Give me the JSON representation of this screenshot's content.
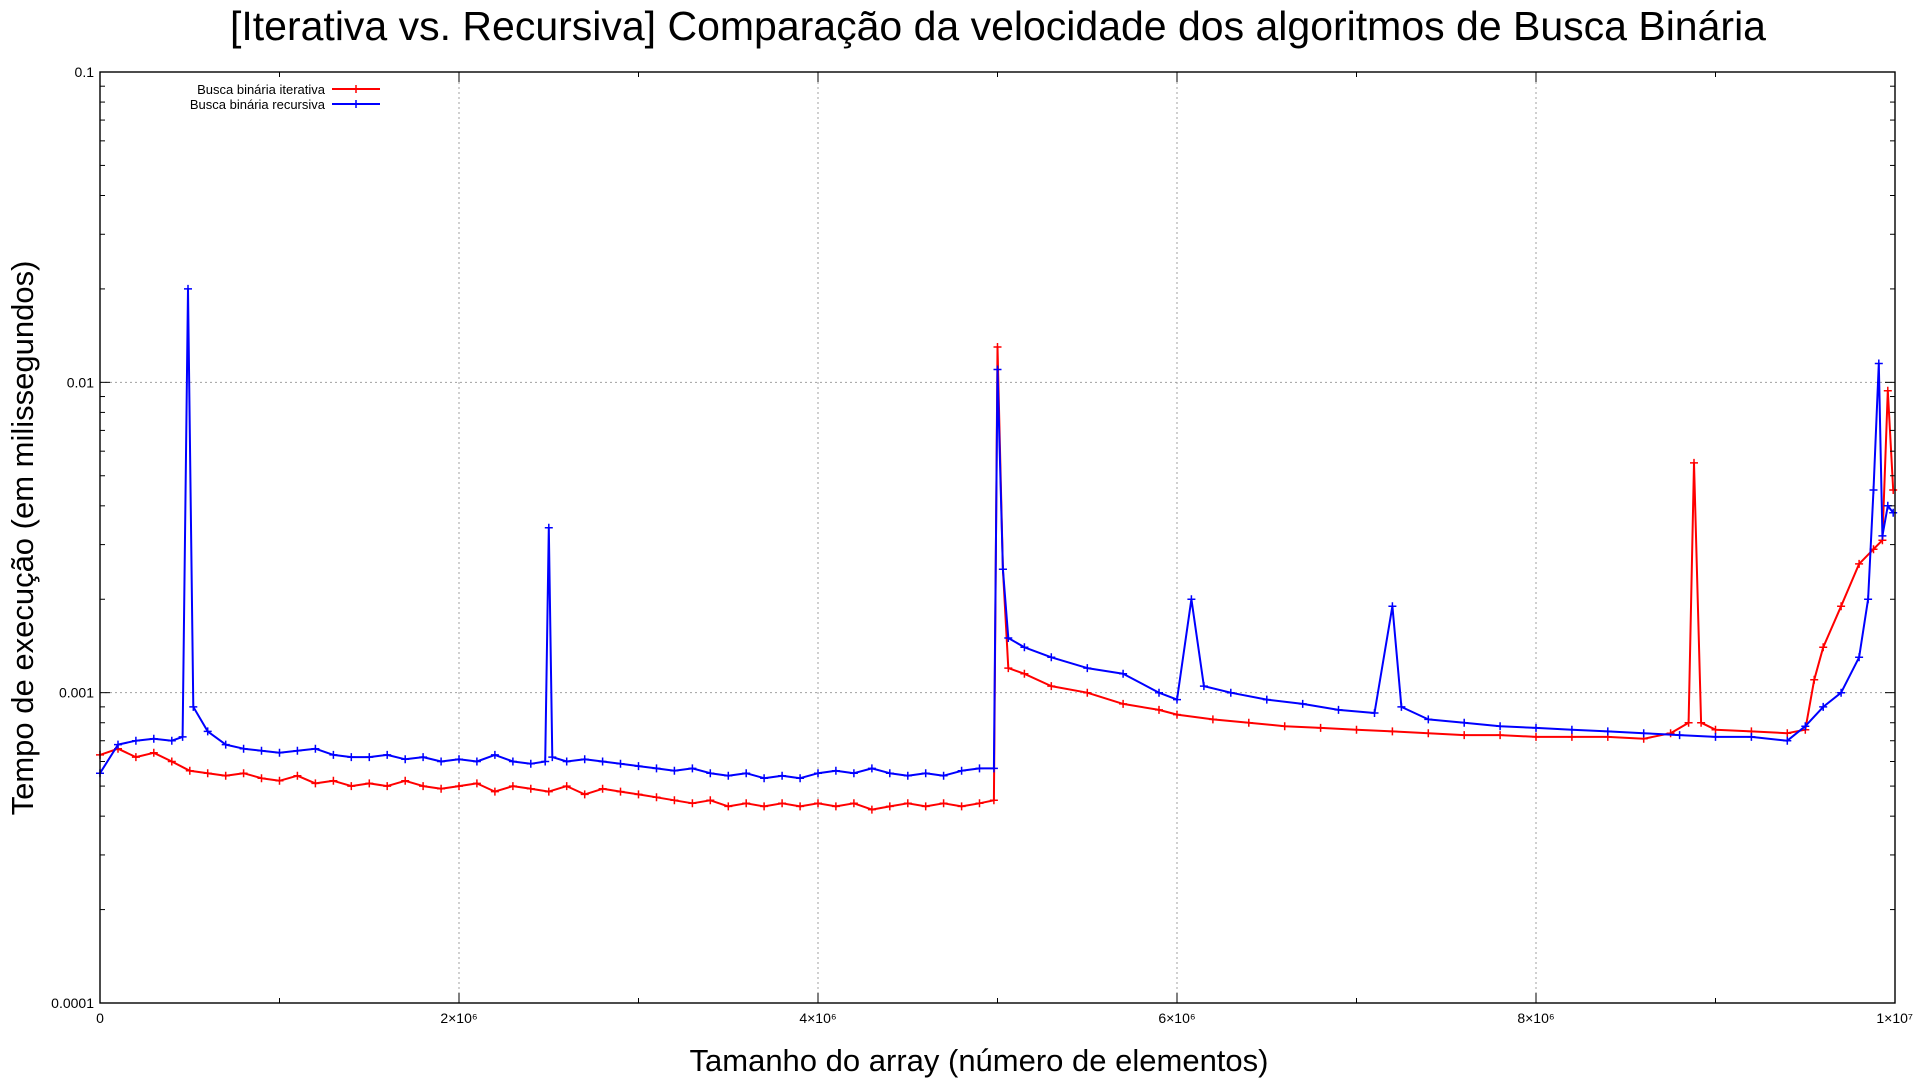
{
  "chart_data": {
    "type": "line",
    "title": "[Iterativa vs. Recursiva] Comparação da velocidade dos algoritmos de Busca Binária",
    "xlabel": "Tamanho do array (número de elementos)",
    "ylabel": "Tempo de execução (em milissegundos)",
    "x_scale": "linear",
    "y_scale": "log",
    "xlim": [
      0,
      10000000
    ],
    "ylim": [
      0.0001,
      0.1
    ],
    "x_ticks": [
      {
        "value": 0,
        "label": "0"
      },
      {
        "value": 2000000,
        "label": "2×10⁶"
      },
      {
        "value": 4000000,
        "label": "4×10⁶"
      },
      {
        "value": 6000000,
        "label": "6×10⁶"
      },
      {
        "value": 8000000,
        "label": "8×10⁶"
      },
      {
        "value": 10000000,
        "label": "1×10⁷"
      }
    ],
    "y_ticks": [
      {
        "value": 0.0001,
        "label": "0.0001"
      },
      {
        "value": 0.001,
        "label": "0.001"
      },
      {
        "value": 0.01,
        "label": "0.01"
      },
      {
        "value": 0.1,
        "label": "0.1"
      }
    ],
    "grid": true,
    "legend_position": "top-left",
    "series": [
      {
        "name": "Busca binária iterativa",
        "color": "#ff0000",
        "marker": "plus",
        "points": [
          [
            0,
            0.00063
          ],
          [
            100000,
            0.00066
          ],
          [
            200000,
            0.00062
          ],
          [
            300000,
            0.00064
          ],
          [
            400000,
            0.0006
          ],
          [
            500000,
            0.00056
          ],
          [
            600000,
            0.00055
          ],
          [
            700000,
            0.00054
          ],
          [
            800000,
            0.00055
          ],
          [
            900000,
            0.00053
          ],
          [
            1000000,
            0.00052
          ],
          [
            1100000,
            0.00054
          ],
          [
            1200000,
            0.00051
          ],
          [
            1300000,
            0.00052
          ],
          [
            1400000,
            0.0005
          ],
          [
            1500000,
            0.00051
          ],
          [
            1600000,
            0.0005
          ],
          [
            1700000,
            0.00052
          ],
          [
            1800000,
            0.0005
          ],
          [
            1900000,
            0.00049
          ],
          [
            2000000,
            0.0005
          ],
          [
            2100000,
            0.00051
          ],
          [
            2200000,
            0.00048
          ],
          [
            2300000,
            0.0005
          ],
          [
            2400000,
            0.00049
          ],
          [
            2500000,
            0.00048
          ],
          [
            2600000,
            0.0005
          ],
          [
            2700000,
            0.00047
          ],
          [
            2800000,
            0.00049
          ],
          [
            2900000,
            0.00048
          ],
          [
            3000000,
            0.00047
          ],
          [
            3100000,
            0.00046
          ],
          [
            3200000,
            0.00045
          ],
          [
            3300000,
            0.00044
          ],
          [
            3400000,
            0.00045
          ],
          [
            3500000,
            0.00043
          ],
          [
            3600000,
            0.00044
          ],
          [
            3700000,
            0.00043
          ],
          [
            3800000,
            0.00044
          ],
          [
            3900000,
            0.00043
          ],
          [
            4000000,
            0.00044
          ],
          [
            4100000,
            0.00043
          ],
          [
            4200000,
            0.00044
          ],
          [
            4300000,
            0.00042
          ],
          [
            4400000,
            0.00043
          ],
          [
            4500000,
            0.00044
          ],
          [
            4600000,
            0.00043
          ],
          [
            4700000,
            0.00044
          ],
          [
            4800000,
            0.00043
          ],
          [
            4900000,
            0.00044
          ],
          [
            4980000,
            0.00045
          ],
          [
            5000000,
            0.013
          ],
          [
            5030000,
            0.0025
          ],
          [
            5060000,
            0.0012
          ],
          [
            5150000,
            0.00115
          ],
          [
            5300000,
            0.00105
          ],
          [
            5500000,
            0.001
          ],
          [
            5700000,
            0.00092
          ],
          [
            5900000,
            0.00088
          ],
          [
            6000000,
            0.00085
          ],
          [
            6200000,
            0.00082
          ],
          [
            6400000,
            0.0008
          ],
          [
            6600000,
            0.00078
          ],
          [
            6800000,
            0.00077
          ],
          [
            7000000,
            0.00076
          ],
          [
            7200000,
            0.00075
          ],
          [
            7400000,
            0.00074
          ],
          [
            7600000,
            0.00073
          ],
          [
            7800000,
            0.00073
          ],
          [
            8000000,
            0.00072
          ],
          [
            8200000,
            0.00072
          ],
          [
            8400000,
            0.00072
          ],
          [
            8600000,
            0.00071
          ],
          [
            8750000,
            0.00074
          ],
          [
            8850000,
            0.0008
          ],
          [
            8880000,
            0.0055
          ],
          [
            8920000,
            0.0008
          ],
          [
            9000000,
            0.00076
          ],
          [
            9200000,
            0.00075
          ],
          [
            9400000,
            0.00074
          ],
          [
            9500000,
            0.00076
          ],
          [
            9550000,
            0.0011
          ],
          [
            9600000,
            0.0014
          ],
          [
            9700000,
            0.0019
          ],
          [
            9800000,
            0.0026
          ],
          [
            9880000,
            0.0029
          ],
          [
            9930000,
            0.0031
          ],
          [
            9960000,
            0.0094
          ],
          [
            9990000,
            0.0045
          ]
        ]
      },
      {
        "name": "Busca binária recursiva",
        "color": "#0000ff",
        "marker": "plus",
        "points": [
          [
            0,
            0.00055
          ],
          [
            100000,
            0.00068
          ],
          [
            200000,
            0.0007
          ],
          [
            300000,
            0.00071
          ],
          [
            400000,
            0.0007
          ],
          [
            460000,
            0.00072
          ],
          [
            490000,
            0.02
          ],
          [
            520000,
            0.0009
          ],
          [
            600000,
            0.00075
          ],
          [
            700000,
            0.00068
          ],
          [
            800000,
            0.00066
          ],
          [
            900000,
            0.00065
          ],
          [
            1000000,
            0.00064
          ],
          [
            1100000,
            0.00065
          ],
          [
            1200000,
            0.00066
          ],
          [
            1300000,
            0.00063
          ],
          [
            1400000,
            0.00062
          ],
          [
            1500000,
            0.00062
          ],
          [
            1600000,
            0.00063
          ],
          [
            1700000,
            0.00061
          ],
          [
            1800000,
            0.00062
          ],
          [
            1900000,
            0.0006
          ],
          [
            2000000,
            0.00061
          ],
          [
            2100000,
            0.0006
          ],
          [
            2200000,
            0.00063
          ],
          [
            2300000,
            0.0006
          ],
          [
            2400000,
            0.00059
          ],
          [
            2480000,
            0.0006
          ],
          [
            2500000,
            0.0034
          ],
          [
            2520000,
            0.00062
          ],
          [
            2600000,
            0.0006
          ],
          [
            2700000,
            0.00061
          ],
          [
            2800000,
            0.0006
          ],
          [
            2900000,
            0.00059
          ],
          [
            3000000,
            0.00058
          ],
          [
            3100000,
            0.00057
          ],
          [
            3200000,
            0.00056
          ],
          [
            3300000,
            0.00057
          ],
          [
            3400000,
            0.00055
          ],
          [
            3500000,
            0.00054
          ],
          [
            3600000,
            0.00055
          ],
          [
            3700000,
            0.00053
          ],
          [
            3800000,
            0.00054
          ],
          [
            3900000,
            0.00053
          ],
          [
            4000000,
            0.00055
          ],
          [
            4100000,
            0.00056
          ],
          [
            4200000,
            0.00055
          ],
          [
            4300000,
            0.00057
          ],
          [
            4400000,
            0.00055
          ],
          [
            4500000,
            0.00054
          ],
          [
            4600000,
            0.00055
          ],
          [
            4700000,
            0.00054
          ],
          [
            4800000,
            0.00056
          ],
          [
            4900000,
            0.00057
          ],
          [
            4980000,
            0.00057
          ],
          [
            5000000,
            0.011
          ],
          [
            5030000,
            0.0025
          ],
          [
            5060000,
            0.0015
          ],
          [
            5150000,
            0.0014
          ],
          [
            5300000,
            0.0013
          ],
          [
            5500000,
            0.0012
          ],
          [
            5700000,
            0.00115
          ],
          [
            5900000,
            0.001
          ],
          [
            6000000,
            0.00095
          ],
          [
            6080000,
            0.002
          ],
          [
            6150000,
            0.00105
          ],
          [
            6300000,
            0.001
          ],
          [
            6500000,
            0.00095
          ],
          [
            6700000,
            0.00092
          ],
          [
            6900000,
            0.00088
          ],
          [
            7100000,
            0.00086
          ],
          [
            7200000,
            0.0019
          ],
          [
            7250000,
            0.0009
          ],
          [
            7400000,
            0.00082
          ],
          [
            7600000,
            0.0008
          ],
          [
            7800000,
            0.00078
          ],
          [
            8000000,
            0.00077
          ],
          [
            8200000,
            0.00076
          ],
          [
            8400000,
            0.00075
          ],
          [
            8600000,
            0.00074
          ],
          [
            8800000,
            0.00073
          ],
          [
            9000000,
            0.00072
          ],
          [
            9200000,
            0.00072
          ],
          [
            9400000,
            0.0007
          ],
          [
            9500000,
            0.00078
          ],
          [
            9600000,
            0.0009
          ],
          [
            9700000,
            0.001
          ],
          [
            9800000,
            0.0013
          ],
          [
            9850000,
            0.002
          ],
          [
            9880000,
            0.0045
          ],
          [
            9910000,
            0.0115
          ],
          [
            9930000,
            0.0032
          ],
          [
            9960000,
            0.004
          ],
          [
            9990000,
            0.0038
          ]
        ]
      }
    ]
  }
}
